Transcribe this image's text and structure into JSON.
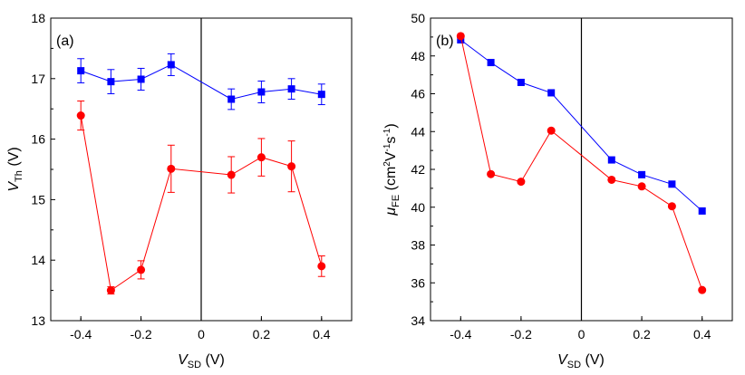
{
  "chart_data": [
    {
      "type": "line",
      "panel_label": "(a)",
      "xlabel": {
        "main": "V",
        "sub": "SD",
        "unit": " (V)"
      },
      "ylabel": {
        "main": "V",
        "sub": "Th",
        "unit": " (V)"
      },
      "xlim": [
        -0.5,
        0.5
      ],
      "ylim": [
        13,
        18
      ],
      "xticks": [
        -0.4,
        -0.2,
        0.0,
        0.2,
        0.4
      ],
      "xtick_labels": [
        "-0.4",
        "-0.2",
        "0",
        "0.2",
        "0.4"
      ],
      "yticks": [
        13,
        14,
        15,
        16,
        17,
        18
      ],
      "ytick_labels": [
        "13",
        "14",
        "15",
        "16",
        "17",
        "18"
      ],
      "vline_x": 0,
      "series": [
        {
          "name": "blue-squares",
          "color": "#0000ff",
          "marker": "square",
          "x": [
            -0.4,
            -0.3,
            -0.2,
            -0.1,
            0.1,
            0.2,
            0.3,
            0.4
          ],
          "y": [
            17.13,
            16.95,
            16.99,
            17.23,
            16.66,
            16.78,
            16.83,
            16.74
          ],
          "err": [
            0.2,
            0.2,
            0.18,
            0.18,
            0.17,
            0.18,
            0.17,
            0.17
          ]
        },
        {
          "name": "red-circles",
          "color": "#ff0000",
          "marker": "circle",
          "x": [
            -0.4,
            -0.3,
            -0.2,
            -0.1,
            0.1,
            0.2,
            0.3,
            0.4
          ],
          "y": [
            16.39,
            13.5,
            13.84,
            15.51,
            15.41,
            15.7,
            15.55,
            13.9
          ],
          "err": [
            0.24,
            0.06,
            0.15,
            0.39,
            0.3,
            0.31,
            0.42,
            0.17
          ]
        }
      ]
    },
    {
      "type": "line",
      "panel_label": "(b)",
      "xlabel": {
        "main": "V",
        "sub": "SD",
        "unit": " (V)"
      },
      "ylabel": {
        "main": "μ",
        "sub": "FE",
        "unit_pre": " (cm",
        "sup1": "2",
        "mid": "V",
        "sup2": "-1",
        "mid2": "s",
        "sup3": "-1",
        "unit_post": ")"
      },
      "xlim": [
        -0.5,
        0.5
      ],
      "ylim": [
        34,
        50
      ],
      "xticks": [
        -0.4,
        -0.2,
        0.0,
        0.2,
        0.4
      ],
      "xtick_labels": [
        "-0.4",
        "-0.2",
        "0",
        "0.2",
        "0.4"
      ],
      "yticks": [
        34,
        36,
        38,
        40,
        42,
        44,
        46,
        48,
        50
      ],
      "ytick_labels": [
        "34",
        "36",
        "38",
        "40",
        "42",
        "44",
        "46",
        "48",
        "50"
      ],
      "vline_x": 0,
      "series": [
        {
          "name": "blue-squares",
          "color": "#0000ff",
          "marker": "square",
          "x": [
            -0.4,
            -0.3,
            -0.2,
            -0.1,
            0.1,
            0.2,
            0.3,
            0.4
          ],
          "y": [
            48.85,
            47.65,
            46.6,
            46.05,
            42.5,
            41.72,
            41.22,
            39.8
          ]
        },
        {
          "name": "red-circles",
          "color": "#ff0000",
          "marker": "circle",
          "x": [
            -0.4,
            -0.3,
            -0.2,
            -0.1,
            0.1,
            0.2,
            0.3,
            0.4
          ],
          "y": [
            49.05,
            41.75,
            41.35,
            44.05,
            41.45,
            41.1,
            40.05,
            35.62
          ]
        }
      ]
    }
  ]
}
